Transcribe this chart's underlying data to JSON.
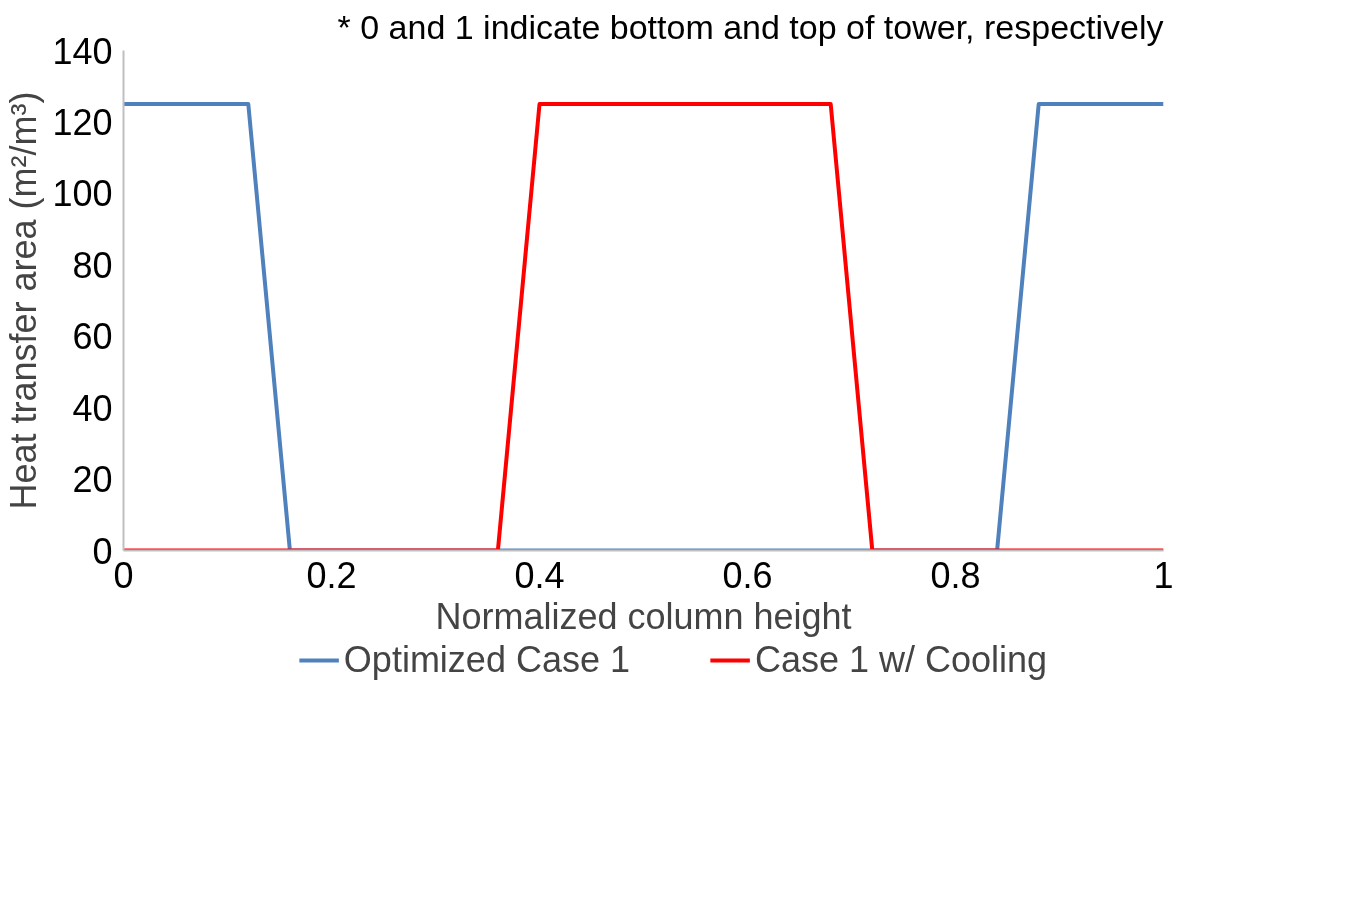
{
  "chart_data": {
    "type": "line",
    "annotations": [
      "* 0 and 1 indicate bottom and top of tower, respectively"
    ],
    "xlabel": "Normalized column height",
    "ylabel": "Heat transfer area (m²/m³)",
    "xlim": [
      0,
      1
    ],
    "xticks": [
      0,
      0.2,
      0.4,
      0.6,
      0.8,
      1
    ],
    "ylim": [
      0,
      140
    ],
    "yticks": [
      0,
      20,
      40,
      60,
      80,
      100,
      120,
      140
    ],
    "grid": false,
    "legend": "bottom",
    "series": [
      {
        "name": "Optimized Case 1",
        "color": "#4f81bd",
        "x": [
          0,
          0.12,
          0.16,
          0.84,
          0.88,
          1
        ],
        "values": [
          125,
          125,
          0,
          0,
          125,
          125
        ]
      },
      {
        "name": "Case 1 w/ Cooling",
        "color": "#ff0000",
        "x": [
          0,
          0.36,
          0.4,
          0.68,
          0.72,
          1
        ],
        "values": [
          0,
          0,
          125,
          125,
          0,
          0
        ]
      }
    ]
  }
}
